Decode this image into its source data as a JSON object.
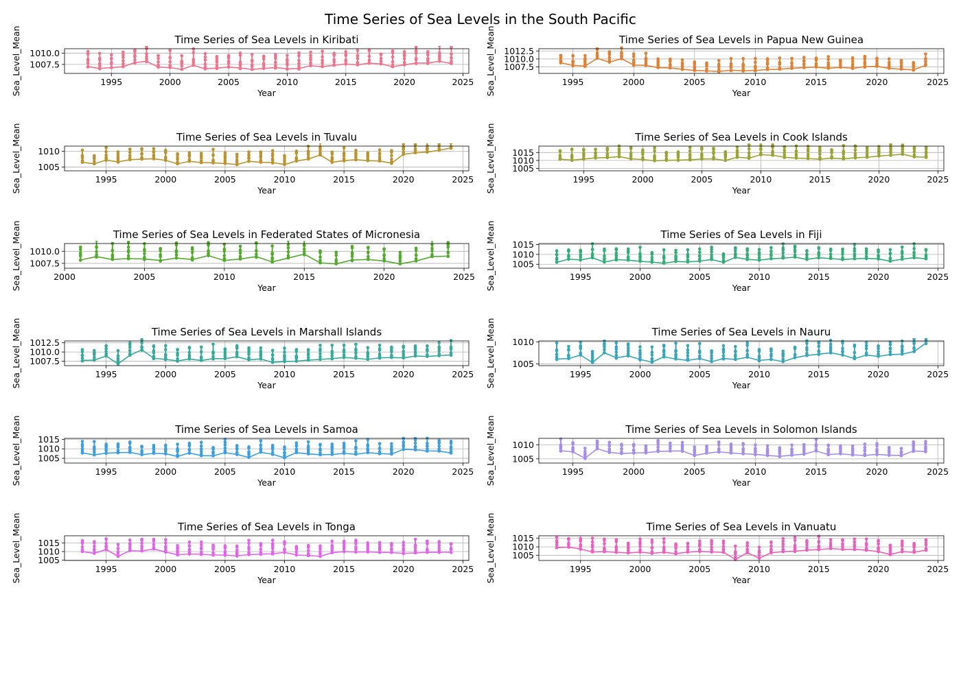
{
  "figure": {
    "title": "Time Series of Sea Levels in the South Pacific",
    "xlabel": "Year",
    "ylabel": "Sea_Level_Mean"
  },
  "chart_data": [
    {
      "type": "line",
      "title": "Time Series of Sea Levels in Kiribati",
      "color": "#f0728a",
      "xlim": [
        1991,
        2025.5
      ],
      "ylim": [
        1005.5,
        1011.0
      ],
      "xticks": [
        1995,
        2000,
        2005,
        2010,
        2015,
        2020,
        2025
      ],
      "yticks": [
        1007.5,
        1010.0
      ],
      "ytick_labels": [
        "1007.5",
        "1010.0"
      ],
      "x_start": 1993,
      "x_end": 2024,
      "values": [
        1007.0,
        1006.6,
        1006.8,
        1007.0,
        1007.9,
        1008.2,
        1006.9,
        1006.8,
        1006.4,
        1007.3,
        1006.5,
        1006.7,
        1006.9,
        1006.7,
        1006.4,
        1006.6,
        1006.8,
        1006.5,
        1006.6,
        1007.2,
        1007.0,
        1007.3,
        1007.6,
        1007.4,
        1007.8,
        1007.6,
        1007.0,
        1007.4,
        1007.8,
        1007.8,
        1008.2,
        1007.7
      ],
      "spread": 3.2
    },
    {
      "type": "line",
      "title": "Time Series of Sea Levels in Papua New Guinea",
      "color": "#df8032",
      "xlim": [
        1992.2,
        2025.5
      ],
      "ylim": [
        1005.5,
        1013.2
      ],
      "xticks": [
        1995,
        2000,
        2005,
        2010,
        2015,
        2020,
        2025
      ],
      "yticks": [
        1007.5,
        1010.0,
        1012.5
      ],
      "ytick_labels": [
        "1007.5",
        "1010.0",
        "1012.5"
      ],
      "x_start": 1994,
      "x_end": 2024,
      "values": [
        1008.8,
        1008.0,
        1007.8,
        1010.2,
        1009.0,
        1010.1,
        1008.1,
        1008.0,
        1007.3,
        1007.2,
        1006.8,
        1006.4,
        1006.3,
        1006.1,
        1006.5,
        1006.3,
        1006.4,
        1006.7,
        1006.8,
        1007.1,
        1007.3,
        1007.5,
        1007.1,
        1007.4,
        1007.1,
        1007.6,
        1007.7,
        1007.1,
        1006.8,
        1006.6,
        1008.0
      ],
      "spread": 3.2
    },
    {
      "type": "line",
      "title": "Time Series of Sea Levels in Tuvalu",
      "color": "#b8932e",
      "xlim": [
        1991.5,
        2025.5
      ],
      "ylim": [
        1003.8,
        1011.6
      ],
      "xticks": [
        1995,
        2000,
        2005,
        2010,
        2015,
        2020,
        2025
      ],
      "yticks": [
        1005,
        1010
      ],
      "ytick_labels": [
        "1005",
        "1010"
      ],
      "x_start": 1993,
      "x_end": 2024,
      "values": [
        1006.5,
        1006.0,
        1007.2,
        1006.6,
        1007.3,
        1007.5,
        1007.6,
        1007.1,
        1006.0,
        1006.8,
        1006.4,
        1006.3,
        1006.1,
        1005.8,
        1006.8,
        1006.5,
        1006.4,
        1005.8,
        1006.9,
        1007.5,
        1008.8,
        1006.5,
        1007.0,
        1007.3,
        1007.0,
        1006.9,
        1006.2,
        1009.0,
        1009.5,
        1009.7,
        1010.3,
        1011.0
      ],
      "spread": 3.5
    },
    {
      "type": "line",
      "title": "Time Series of Sea Levels in Cook Islands",
      "color": "#9aa332",
      "xlim": [
        1991.2,
        2025.5
      ],
      "ylim": [
        1003.5,
        1019.0
      ],
      "xticks": [
        1995,
        2000,
        2005,
        2010,
        2015,
        2020,
        2025
      ],
      "yticks": [
        1005,
        1010,
        1015
      ],
      "ytick_labels": [
        "1005",
        "1010",
        "1015"
      ],
      "x_start": 1993,
      "x_end": 2024,
      "values": [
        1010.8,
        1010.2,
        1010.9,
        1011.6,
        1011.8,
        1012.4,
        1011.0,
        1010.6,
        1009.8,
        1010.1,
        1010.2,
        1010.4,
        1010.9,
        1011.0,
        1010.0,
        1012.0,
        1011.5,
        1013.6,
        1013.3,
        1012.0,
        1011.5,
        1011.2,
        1010.8,
        1011.5,
        1011.0,
        1011.7,
        1012.0,
        1012.8,
        1013.3,
        1013.9,
        1012.3,
        1012.0
      ],
      "spread": 7
    },
    {
      "type": "line",
      "title": "Time Series of Sea Levels in Federated States of Micronesia",
      "color": "#54a830",
      "xlim": [
        2000,
        2025.3
      ],
      "ylim": [
        1006.5,
        1011.6
      ],
      "xticks": [
        2000,
        2005,
        2010,
        2015,
        2020,
        2025
      ],
      "yticks": [
        1007.5,
        1010.0
      ],
      "ytick_labels": [
        "1007.5",
        "1010.0"
      ],
      "x_start": 2001,
      "x_end": 2024,
      "values": [
        1008.2,
        1008.9,
        1008.3,
        1008.5,
        1008.4,
        1008.1,
        1008.6,
        1008.3,
        1009.1,
        1008.1,
        1008.4,
        1008.9,
        1007.8,
        1008.6,
        1009.4,
        1007.6,
        1007.4,
        1008.2,
        1008.3,
        1008.0,
        1007.4,
        1008.0,
        1008.9,
        1009.0
      ],
      "spread": 3
    },
    {
      "type": "line",
      "title": "Time Series of Sea Levels in Fiji",
      "color": "#33ad78",
      "xlim": [
        1991.5,
        2025.5
      ],
      "ylim": [
        1003.0,
        1015.5
      ],
      "xticks": [
        1995,
        2000,
        2005,
        2010,
        2015,
        2020,
        2025
      ],
      "yticks": [
        1005,
        1010,
        1015
      ],
      "ytick_labels": [
        "1005",
        "1010",
        "1015"
      ],
      "x_start": 1993,
      "x_end": 2024,
      "values": [
        1006.0,
        1007.6,
        1007.2,
        1008.3,
        1006.1,
        1007.3,
        1007.1,
        1006.5,
        1006.1,
        1005.5,
        1006.4,
        1006.2,
        1006.6,
        1007.4,
        1006.0,
        1008.5,
        1007.5,
        1007.1,
        1007.8,
        1008.1,
        1008.6,
        1007.5,
        1008.3,
        1007.9,
        1007.4,
        1007.8,
        1008.0,
        1007.7,
        1006.6,
        1007.6,
        1008.3,
        1007.8
      ],
      "spread": 6
    },
    {
      "type": "line",
      "title": "Time Series of Sea Levels in Marshall Islands",
      "color": "#35aa9b",
      "xlim": [
        1991.5,
        2025.5
      ],
      "ylim": [
        1006.3,
        1013.0
      ],
      "xticks": [
        1995,
        2000,
        2005,
        2010,
        2015,
        2020,
        2025
      ],
      "yticks": [
        1007.5,
        1010.0,
        1012.5
      ],
      "ytick_labels": [
        "1007.5",
        "1010.0",
        "1012.5"
      ],
      "x_start": 1993,
      "x_end": 2024,
      "values": [
        1007.7,
        1007.8,
        1008.9,
        1006.8,
        1009.1,
        1010.6,
        1008.3,
        1008.0,
        1007.6,
        1008.1,
        1007.7,
        1008.2,
        1008.2,
        1008.7,
        1007.9,
        1008.1,
        1007.2,
        1007.4,
        1007.5,
        1007.8,
        1008.0,
        1008.2,
        1008.5,
        1008.3,
        1008.0,
        1008.4,
        1008.5,
        1008.4,
        1008.9,
        1008.8,
        1009.0,
        1009.2
      ],
      "spread": 3.2
    },
    {
      "type": "line",
      "title": "Time Series of Sea Levels in Nauru",
      "color": "#37a5b8",
      "xlim": [
        1991.5,
        2025.5
      ],
      "ylim": [
        1004.6,
        1010.2
      ],
      "xticks": [
        1995,
        2000,
        2005,
        2010,
        2015,
        2020,
        2025
      ],
      "yticks": [
        1005,
        1010
      ],
      "ytick_labels": [
        "1005",
        "1010"
      ],
      "x_start": 1993,
      "x_end": 2024,
      "values": [
        1006.1,
        1006.2,
        1007.0,
        1005.3,
        1007.5,
        1006.4,
        1006.8,
        1006.0,
        1005.4,
        1006.6,
        1006.1,
        1005.8,
        1006.2,
        1005.5,
        1006.2,
        1006.0,
        1006.5,
        1005.8,
        1006.0,
        1005.5,
        1006.4,
        1006.9,
        1007.2,
        1007.5,
        1007.0,
        1006.2,
        1007.0,
        1006.7,
        1007.1,
        1007.2,
        1007.8,
        1009.7
      ],
      "spread": 3
    },
    {
      "type": "line",
      "title": "Time Series of Sea Levels in Samoa",
      "color": "#3b9ee0",
      "xlim": [
        1991.5,
        2025.5
      ],
      "ylim": [
        1002.5,
        1015.5
      ],
      "xticks": [
        1995,
        2000,
        2005,
        2010,
        2015,
        2020,
        2025
      ],
      "yticks": [
        1005,
        1010,
        1015
      ],
      "ytick_labels": [
        "1005",
        "1010",
        "1015"
      ],
      "x_start": 1993,
      "x_end": 2024,
      "values": [
        1007.8,
        1006.8,
        1007.7,
        1008.0,
        1008.1,
        1006.9,
        1007.6,
        1007.4,
        1006.0,
        1007.8,
        1006.4,
        1006.3,
        1008.0,
        1007.0,
        1005.5,
        1008.2,
        1007.1,
        1005.3,
        1008.0,
        1007.3,
        1006.9,
        1007.0,
        1007.6,
        1007.1,
        1008.0,
        1007.5,
        1007.2,
        1009.7,
        1009.5,
        1008.9,
        1008.8,
        1007.8
      ],
      "spread": 6
    },
    {
      "type": "line",
      "title": "Time Series of Sea Levels in Solomon Islands",
      "color": "#a68cea",
      "xlim": [
        1992.2,
        2025.5
      ],
      "ylim": [
        1003.5,
        1012.3
      ],
      "xticks": [
        1995,
        2000,
        2005,
        2010,
        2015,
        2020,
        2025
      ],
      "yticks": [
        1005,
        1010
      ],
      "ytick_labels": [
        "1005",
        "1010"
      ],
      "x_start": 1994,
      "x_end": 2024,
      "values": [
        1007.9,
        1007.5,
        1005.2,
        1008.6,
        1007.3,
        1006.9,
        1007.1,
        1007.2,
        1007.6,
        1007.8,
        1007.8,
        1006.2,
        1007.0,
        1007.5,
        1007.1,
        1006.8,
        1006.6,
        1006.2,
        1005.9,
        1006.3,
        1006.7,
        1007.8,
        1006.5,
        1006.8,
        1006.4,
        1006.2,
        1006.6,
        1006.3,
        1006.2,
        1007.8,
        1007.6
      ],
      "spread": 3.5
    },
    {
      "type": "line",
      "title": "Time Series of Sea Levels in Tonga",
      "color": "#e063ea",
      "xlim": [
        1991.5,
        2025.5
      ],
      "ylim": [
        1004.8,
        1019.2
      ],
      "xticks": [
        1995,
        2000,
        2005,
        2010,
        2015,
        2020,
        2025
      ],
      "yticks": [
        1005,
        1010,
        1015
      ],
      "ytick_labels": [
        "1005",
        "1010",
        "1015"
      ],
      "x_start": 1993,
      "x_end": 2024,
      "values": [
        1010.0,
        1009.0,
        1011.2,
        1007.2,
        1010.5,
        1010.3,
        1011.5,
        1009.7,
        1008.1,
        1008.6,
        1008.4,
        1008.0,
        1007.9,
        1007.5,
        1008.2,
        1008.5,
        1008.7,
        1009.5,
        1008.0,
        1007.7,
        1007.2,
        1009.3,
        1010.0,
        1009.7,
        1009.8,
        1009.5,
        1009.4,
        1008.9,
        1009.2,
        1009.5,
        1009.6,
        1009.6
      ],
      "spread": 7
    },
    {
      "type": "line",
      "title": "Time Series of Sea Levels in Vanuatu",
      "color": "#ea5fbe",
      "xlim": [
        1991.5,
        2025.5
      ],
      "ylim": [
        1002.0,
        1016.5
      ],
      "xticks": [
        1995,
        2000,
        2005,
        2010,
        2015,
        2020,
        2025
      ],
      "yticks": [
        1005,
        1010,
        1015
      ],
      "ytick_labels": [
        "1005",
        "1010",
        "1015"
      ],
      "x_start": 1993,
      "x_end": 2024,
      "values": [
        1009.5,
        1009.8,
        1008.7,
        1007.0,
        1007.2,
        1006.8,
        1006.4,
        1006.9,
        1006.2,
        1006.8,
        1006.0,
        1006.9,
        1007.3,
        1007.0,
        1006.8,
        1002.6,
        1006.5,
        1003.3,
        1006.5,
        1007.2,
        1007.4,
        1008.0,
        1008.4,
        1009.0,
        1008.5,
        1008.5,
        1008.0,
        1007.2,
        1005.5,
        1007.2,
        1006.8,
        1008.0
      ],
      "spread": 7
    }
  ]
}
